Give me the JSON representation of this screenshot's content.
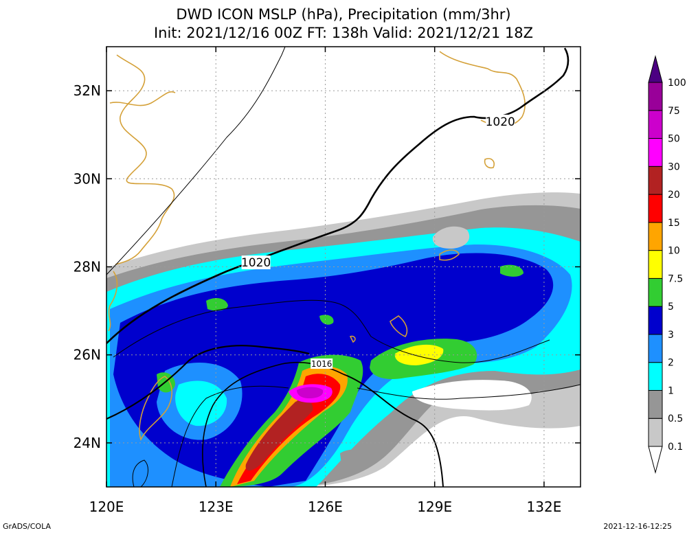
{
  "title": {
    "line1": "DWD ICON MSLP (hPa), Precipitation (mm/3hr)",
    "line2": "Init: 2021/12/16 00Z  FT: 138h  Valid: 2021/12/21 18Z"
  },
  "map": {
    "lon_range": [
      120,
      133
    ],
    "lat_range": [
      23,
      33
    ],
    "lon_ticks": [
      {
        "value": 120,
        "label": "120E"
      },
      {
        "value": 123,
        "label": "123E"
      },
      {
        "value": 126,
        "label": "126E"
      },
      {
        "value": 129,
        "label": "129E"
      },
      {
        "value": 132,
        "label": "132E"
      }
    ],
    "lat_ticks": [
      {
        "value": 24,
        "label": "24N"
      },
      {
        "value": 26,
        "label": "26N"
      },
      {
        "value": 28,
        "label": "28N"
      },
      {
        "value": 30,
        "label": "30N"
      },
      {
        "value": 32,
        "label": "32N"
      }
    ],
    "isobar_labels": [
      {
        "text": "1020",
        "lon": 124.1,
        "lat": 28.1
      },
      {
        "text": "1020",
        "lon": 130.8,
        "lat": 31.3
      },
      {
        "text": "1016",
        "lon": 125.9,
        "lat": 25.8
      }
    ],
    "grid": true
  },
  "colorbar": {
    "levels": [
      "0.1",
      "0.5",
      "1",
      "2",
      "3",
      "5",
      "7.5",
      "10",
      "15",
      "20",
      "30",
      "50",
      "75",
      "100"
    ],
    "colors": [
      "#c8c8c8",
      "#969696",
      "#00ffff",
      "#1e90ff",
      "#0000cd",
      "#32cd32",
      "#ffff00",
      "#ffa500",
      "#ff0000",
      "#b22222",
      "#ff00ff",
      "#cc00cc",
      "#990099",
      "#4b0082"
    ]
  },
  "footer": {
    "left": "GrADS/COLA",
    "right": "2021-12-16-12:25"
  }
}
